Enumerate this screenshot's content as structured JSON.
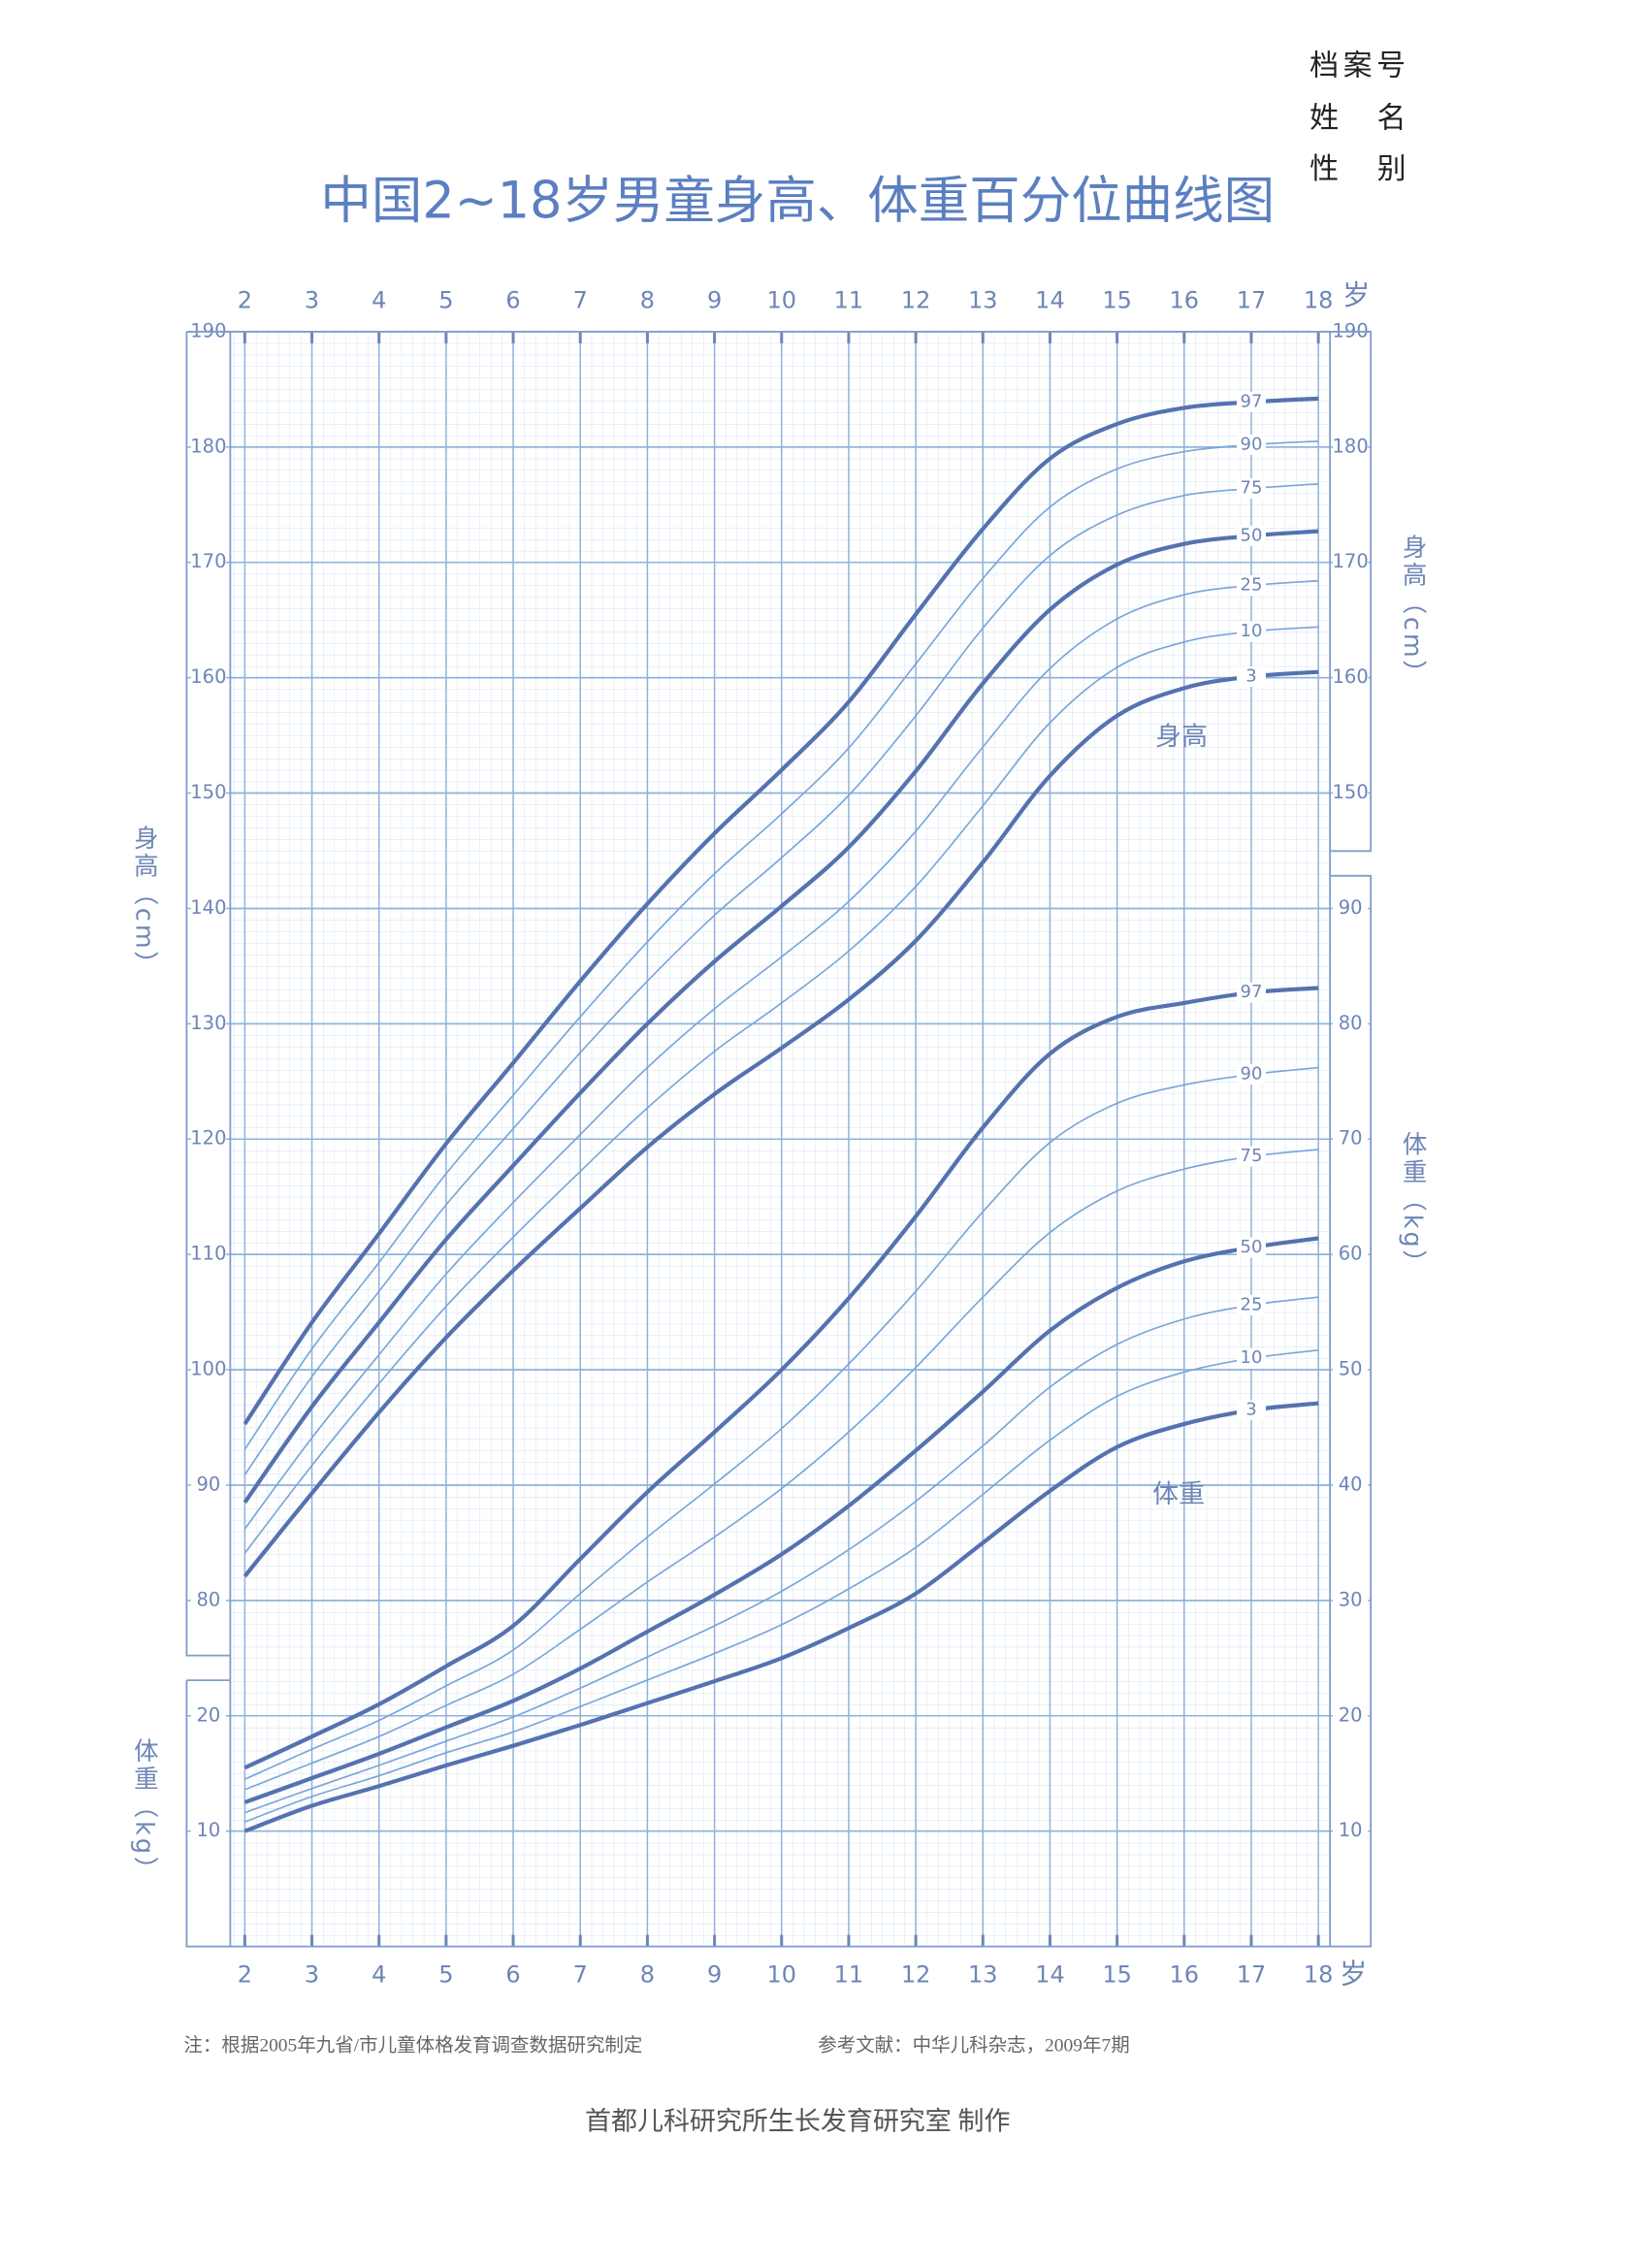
{
  "header": {
    "title": "中国2~18岁男童身高、体重百分位曲线图",
    "fields": [
      "档案号",
      "姓 名",
      "性 别"
    ]
  },
  "chart_data": [
    {
      "type": "line",
      "y_label": "身高（cm）",
      "annotation": "身高",
      "x_unit": "岁",
      "x": [
        2,
        3,
        4,
        5,
        6,
        7,
        8,
        9,
        10,
        11,
        12,
        13,
        14,
        15,
        16,
        17,
        18
      ],
      "xlim": [
        2,
        18
      ],
      "xticks": [
        2,
        3,
        4,
        5,
        6,
        7,
        8,
        9,
        10,
        11,
        12,
        13,
        14,
        15,
        16,
        17,
        18
      ],
      "ylim": [
        50,
        190
      ],
      "yticks": [
        80,
        90,
        100,
        110,
        120,
        130,
        140,
        150,
        160,
        170,
        180,
        190
      ],
      "y2lim": [
        50,
        190
      ],
      "y2ticks": [
        150,
        160,
        170,
        180,
        190
      ],
      "grid": true,
      "series": [
        {
          "name": "97",
          "color": "#5572b0",
          "values": [
            95.3,
            104.1,
            111.8,
            119.6,
            126.6,
            133.7,
            140.4,
            146.5,
            152.0,
            157.9,
            165.5,
            172.9,
            179.0,
            182.0,
            183.4,
            183.9,
            184.2
          ]
        },
        {
          "name": "90",
          "color": "#79a5d8",
          "values": [
            93.1,
            101.8,
            109.3,
            117.0,
            123.8,
            130.6,
            137.1,
            143.0,
            148.2,
            153.9,
            161.2,
            168.6,
            174.8,
            178.1,
            179.6,
            180.2,
            180.5
          ]
        },
        {
          "name": "75",
          "color": "#79a5d8",
          "values": [
            90.9,
            99.4,
            106.8,
            114.3,
            120.9,
            127.5,
            133.7,
            139.4,
            144.4,
            149.8,
            156.7,
            164.3,
            170.6,
            174.1,
            175.8,
            176.4,
            176.8
          ]
        },
        {
          "name": "50",
          "color": "#5572b0",
          "values": [
            88.5,
            96.8,
            104.1,
            111.3,
            117.7,
            124.0,
            130.0,
            135.4,
            140.2,
            145.3,
            151.9,
            159.5,
            165.9,
            169.8,
            171.6,
            172.3,
            172.7
          ]
        },
        {
          "name": "25",
          "color": "#79a5d8",
          "values": [
            86.2,
            94.1,
            101.3,
            108.3,
            114.5,
            120.4,
            126.2,
            131.3,
            135.8,
            140.6,
            146.7,
            154.0,
            160.8,
            165.1,
            167.2,
            168.0,
            168.4
          ]
        },
        {
          "name": "10",
          "color": "#79a5d8",
          "values": [
            84.1,
            91.7,
            98.8,
            105.5,
            111.5,
            117.2,
            122.7,
            127.6,
            131.8,
            136.3,
            141.9,
            148.9,
            156.1,
            160.9,
            163.1,
            164.0,
            164.4
          ]
        },
        {
          "name": "3",
          "color": "#5572b0",
          "values": [
            82.1,
            89.3,
            96.3,
            102.8,
            108.6,
            114.0,
            119.3,
            123.9,
            127.9,
            132.1,
            137.2,
            144.0,
            151.5,
            156.7,
            159.1,
            160.1,
            160.5
          ]
        }
      ]
    },
    {
      "type": "line",
      "y_label": "体重（kg）",
      "annotation": "体重",
      "x_unit": "岁",
      "x": [
        2,
        3,
        4,
        5,
        6,
        7,
        8,
        9,
        10,
        11,
        12,
        13,
        14,
        15,
        16,
        17,
        18
      ],
      "xlim": [
        2,
        18
      ],
      "xticks": [
        2,
        3,
        4,
        5,
        6,
        7,
        8,
        9,
        10,
        11,
        12,
        13,
        14,
        15,
        16,
        17,
        18
      ],
      "ylim": [
        0,
        140
      ],
      "yticks": [
        10,
        20
      ],
      "y2lim": [
        0,
        140
      ],
      "y2ticks": [
        10,
        20,
        30,
        40,
        50,
        60,
        70,
        80,
        90
      ],
      "grid": true,
      "series": [
        {
          "name": "97",
          "color": "#5572b0",
          "values": [
            15.5,
            18.2,
            21.0,
            24.3,
            27.8,
            33.6,
            39.4,
            44.6,
            50.0,
            56.2,
            63.3,
            71.0,
            77.4,
            80.6,
            81.8,
            82.7,
            83.1
          ]
        },
        {
          "name": "90",
          "color": "#79a5d8",
          "values": [
            14.5,
            17.1,
            19.6,
            22.6,
            25.7,
            30.6,
            35.5,
            40.1,
            44.9,
            50.5,
            56.8,
            63.7,
            69.7,
            73.1,
            74.7,
            75.6,
            76.2
          ]
        },
        {
          "name": "75",
          "color": "#79a5d8",
          "values": [
            13.6,
            15.9,
            18.2,
            20.9,
            23.6,
            27.5,
            31.6,
            35.5,
            39.7,
            44.6,
            50.2,
            56.3,
            61.9,
            65.5,
            67.4,
            68.5,
            69.1
          ]
        },
        {
          "name": "50",
          "color": "#5572b0",
          "values": [
            12.5,
            14.6,
            16.7,
            19.0,
            21.3,
            24.1,
            27.3,
            30.5,
            34.0,
            38.2,
            43.0,
            48.1,
            53.4,
            57.1,
            59.4,
            60.6,
            61.4
          ]
        },
        {
          "name": "25",
          "color": "#79a5d8",
          "values": [
            11.6,
            13.7,
            15.7,
            17.8,
            19.9,
            22.4,
            25.1,
            27.8,
            30.8,
            34.4,
            38.6,
            43.4,
            48.5,
            52.2,
            54.4,
            55.6,
            56.3
          ]
        },
        {
          "name": "10",
          "color": "#79a5d8",
          "values": [
            10.8,
            13.0,
            14.8,
            16.8,
            18.6,
            20.8,
            23.1,
            25.4,
            27.9,
            31.0,
            34.6,
            39.2,
            43.9,
            47.7,
            49.8,
            51.0,
            51.7
          ]
        },
        {
          "name": "3",
          "color": "#5572b0",
          "values": [
            10.0,
            12.2,
            13.9,
            15.7,
            17.4,
            19.2,
            21.1,
            23.0,
            25.0,
            27.6,
            30.6,
            35.0,
            39.5,
            43.3,
            45.3,
            46.5,
            47.1
          ]
        }
      ]
    }
  ],
  "footer": {
    "note": "注：根据2005年九省/市儿童体格发育调查数据研究制定",
    "reference": "参考文献：中华儿科杂志，2009年7期",
    "credit": "首都儿科研究所生长发育研究室 制作"
  }
}
